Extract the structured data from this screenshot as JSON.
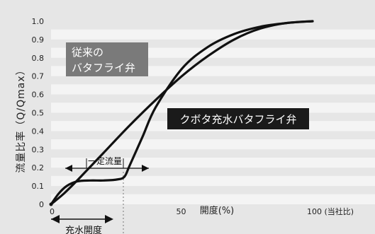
{
  "chart_data": {
    "type": "line",
    "ylabel": "流量比率（Q/Qmax）",
    "xlabel": "開度(%)",
    "x_tick_labels": [
      {
        "x": 0,
        "label": "0"
      },
      {
        "x": 50,
        "label": "50"
      },
      {
        "x": 100,
        "label": "100 (当社比)"
      }
    ],
    "y_ticks": [
      "0",
      "0.1",
      "0.2",
      "0.3",
      "0.4",
      "0.5",
      "0.6",
      "0.7",
      "0.8",
      "0.9",
      "1.0"
    ],
    "xlim": [
      0,
      100
    ],
    "ylim": [
      0,
      1.0
    ],
    "grid": "horizontal bands",
    "series": [
      {
        "name": "従来のバタフライ弁",
        "x": [
          0,
          5,
          10,
          20,
          30,
          40,
          50,
          60,
          70,
          80,
          90,
          100
        ],
        "y": [
          0,
          0.06,
          0.13,
          0.28,
          0.43,
          0.57,
          0.7,
          0.81,
          0.9,
          0.96,
          0.99,
          1.0
        ]
      },
      {
        "name": "クボタ充水バタフライ弁",
        "x": [
          0,
          3,
          6,
          10,
          15,
          20,
          25,
          28,
          30,
          35,
          40,
          50,
          60,
          70,
          80,
          90,
          100
        ],
        "y": [
          0,
          0.06,
          0.1,
          0.125,
          0.13,
          0.13,
          0.135,
          0.15,
          0.21,
          0.37,
          0.53,
          0.74,
          0.86,
          0.93,
          0.97,
          0.99,
          1.0
        ]
      }
    ],
    "annotations": {
      "conventional_label": [
        "従来の",
        "バタフライ弁"
      ],
      "kubota_label": "クボタ充水バタフライ弁",
      "constant_flow": "一定流量",
      "fill_opening": "充水開度"
    }
  }
}
